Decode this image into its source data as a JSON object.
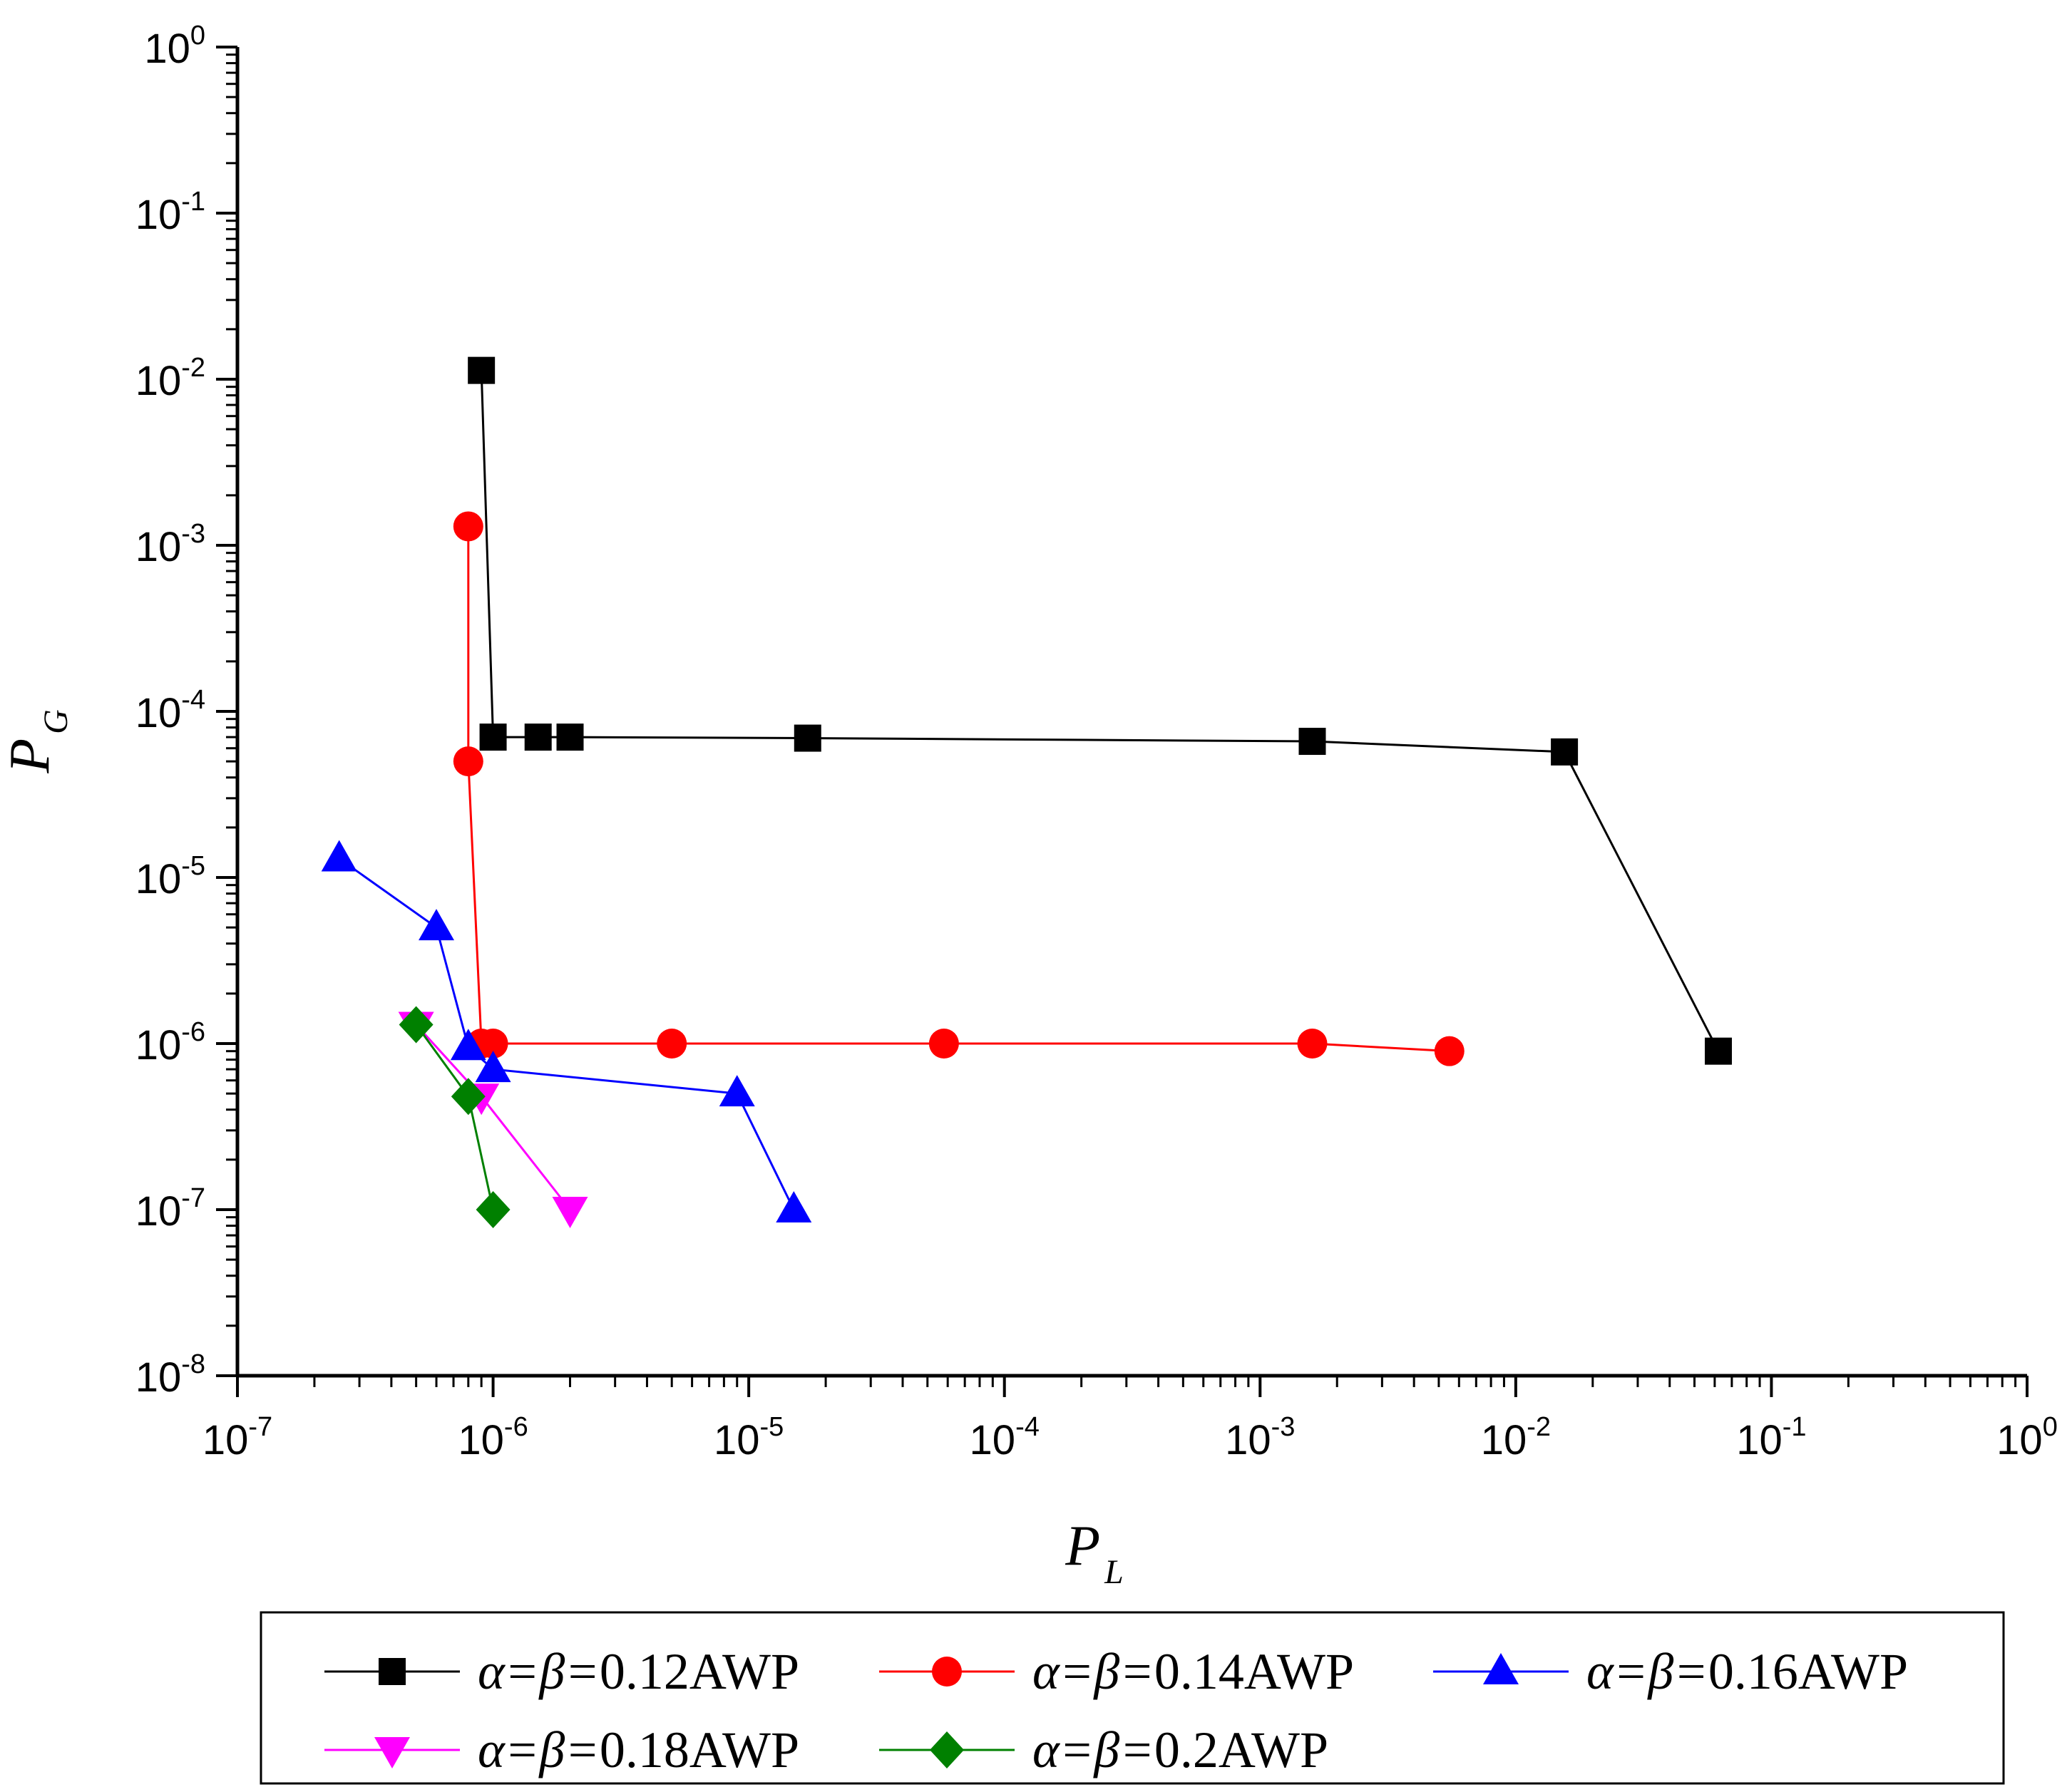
{
  "chart_data": {
    "type": "line",
    "xscale": "log",
    "yscale": "log",
    "xlim": [
      1e-07,
      1
    ],
    "ylim": [
      1e-08,
      1
    ],
    "xlabel": "P",
    "xlabel_sub": "L",
    "ylabel": "P",
    "ylabel_sub": "G",
    "tick_base": "10",
    "x_ticks": [
      {
        "value": 1e-07,
        "exp": "-7"
      },
      {
        "value": 1e-06,
        "exp": "-6"
      },
      {
        "value": 1e-05,
        "exp": "-5"
      },
      {
        "value": 0.0001,
        "exp": "-4"
      },
      {
        "value": 0.001,
        "exp": "-3"
      },
      {
        "value": 0.01,
        "exp": "-2"
      },
      {
        "value": 0.1,
        "exp": "-1"
      },
      {
        "value": 1,
        "exp": "0"
      }
    ],
    "y_ticks": [
      {
        "value": 1e-08,
        "exp": "-8"
      },
      {
        "value": 1e-07,
        "exp": "-7"
      },
      {
        "value": 1e-06,
        "exp": "-6"
      },
      {
        "value": 1e-05,
        "exp": "-5"
      },
      {
        "value": 0.0001,
        "exp": "-4"
      },
      {
        "value": 0.001,
        "exp": "-3"
      },
      {
        "value": 0.01,
        "exp": "-2"
      },
      {
        "value": 0.1,
        "exp": "-1"
      },
      {
        "value": 1,
        "exp": "0"
      }
    ],
    "grid": false,
    "legend_position": "bottom",
    "series": [
      {
        "name": "α=β=0.12AWP",
        "name_greek": "α=β=",
        "name_rest": "0.12AWP",
        "color": "#000000",
        "marker": "square",
        "points": [
          [
            9e-07,
            0.0113
          ],
          [
            1e-06,
            7e-05
          ],
          [
            1.5e-06,
            7e-05
          ],
          [
            2e-06,
            7e-05
          ],
          [
            1.7e-05,
            6.9e-05
          ],
          [
            0.0016,
            6.6e-05
          ],
          [
            0.0155,
            5.7e-05
          ],
          [
            0.062,
            9e-07
          ]
        ]
      },
      {
        "name": "α=β=0.14AWP",
        "name_greek": "α=β=",
        "name_rest": "0.14AWP",
        "color": "#ff0000",
        "marker": "circle",
        "points": [
          [
            8e-07,
            0.0013
          ],
          [
            8e-07,
            5e-05
          ],
          [
            9e-07,
            1e-06
          ],
          [
            1e-06,
            1e-06
          ],
          [
            5e-06,
            1e-06
          ],
          [
            5.8e-05,
            1e-06
          ],
          [
            0.0016,
            1e-06
          ],
          [
            0.0055,
            9e-07
          ]
        ]
      },
      {
        "name": "α=β=0.16AWP",
        "name_greek": "α=β=",
        "name_rest": "0.16AWP",
        "color": "#0000ff",
        "marker": "triangle-up",
        "points": [
          [
            2.5e-07,
            1.3e-05
          ],
          [
            6e-07,
            5e-06
          ],
          [
            8e-07,
            9.5e-07
          ],
          [
            1e-06,
            7e-07
          ],
          [
            9e-06,
            5e-07
          ],
          [
            1.5e-05,
            1e-07
          ]
        ]
      },
      {
        "name": "α=β=0.18AWP",
        "name_greek": "α=β=",
        "name_rest": "0.18AWP",
        "color": "#ff00ff",
        "marker": "triangle-down",
        "points": [
          [
            5e-07,
            1.3e-06
          ],
          [
            9e-07,
            4.8e-07
          ],
          [
            2e-06,
            1e-07
          ]
        ]
      },
      {
        "name": "α=β=0.2AWP",
        "name_greek": "α=β=",
        "name_rest": "0.2AWP",
        "color": "#008000",
        "marker": "diamond",
        "points": [
          [
            5e-07,
            1.3e-06
          ],
          [
            8e-07,
            4.8e-07
          ],
          [
            1e-06,
            1e-07
          ]
        ]
      }
    ]
  }
}
